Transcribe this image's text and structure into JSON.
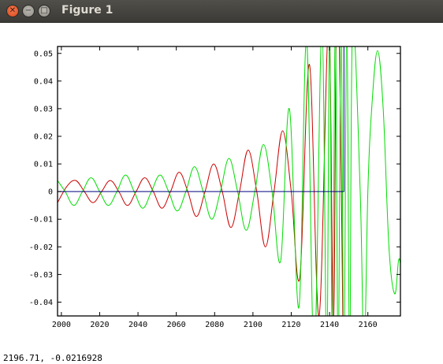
{
  "window": {
    "title": "Figure 1"
  },
  "titlebar_buttons": [
    {
      "name": "close",
      "icon": "close-icon",
      "glyph": "✕"
    },
    {
      "name": "minimize",
      "icon": "minimize-icon",
      "glyph": "−"
    },
    {
      "name": "maximize",
      "icon": "maximize-icon",
      "glyph": "□"
    }
  ],
  "status": {
    "coords": "2196.71, -0.0216928"
  },
  "chart_data": {
    "type": "line",
    "title": "",
    "xlabel": "",
    "ylabel": "",
    "xlim": [
      1998,
      2177
    ],
    "ylim": [
      -0.045,
      0.0525
    ],
    "x_ticks": [
      2000,
      2020,
      2040,
      2060,
      2080,
      2100,
      2120,
      2140,
      2160
    ],
    "x_tick_labels": [
      "2000",
      "2020",
      "2040",
      "2060",
      "2080",
      "2100",
      "2120",
      "2140",
      "2160"
    ],
    "y_ticks": [
      -0.04,
      -0.03,
      -0.02,
      -0.01,
      0,
      0.01,
      0.02,
      0.03,
      0.04,
      0.05
    ],
    "y_tick_labels": [
      "-0.04",
      "-0.03",
      "-0.02",
      "-0.01",
      "0",
      "0.01",
      "0.02",
      "0.03",
      "0.04",
      "0.05"
    ],
    "grid": false,
    "legend": "none",
    "series": [
      {
        "color": "#cc0000",
        "x": [
          1998,
          2003,
          2007.5,
          2012,
          2016.5,
          2021,
          2025.5,
          2030,
          2034.5,
          2039,
          2043.5,
          2048,
          2052.5,
          2057,
          2061.5,
          2066,
          2070.5,
          2075,
          2079.5,
          2084,
          2088.5,
          2093,
          2097.5,
          2102,
          2106.5,
          2111,
          2115.5,
          2120,
          2124.5,
          2129.5,
          2134.5,
          2139.5,
          2142,
          2143.5,
          2145,
          2147
        ],
        "y": [
          -0.004,
          0.002,
          0.004,
          0,
          -0.004,
          0,
          0.004,
          0,
          -0.005,
          0,
          0.005,
          0,
          -0.006,
          0,
          0.007,
          0,
          -0.009,
          0,
          0.01,
          0,
          -0.013,
          0,
          0.015,
          0,
          -0.02,
          0,
          0.022,
          0,
          -0.031,
          0.046,
          -0.045,
          0.06,
          -0.05,
          0.06,
          0.06,
          -0.05
        ]
      },
      {
        "color": "#00dd00",
        "x": [
          1998,
          2002,
          2006.5,
          2011,
          2015.5,
          2020,
          2024.5,
          2029,
          2033.5,
          2038,
          2042.5,
          2047,
          2051.5,
          2056,
          2060.5,
          2065,
          2069.5,
          2074,
          2078.5,
          2083,
          2087.5,
          2092,
          2096.5,
          2101,
          2105.5,
          2110,
          2114.5,
          2119,
          2124,
          2128,
          2132,
          2136,
          2138.5,
          2140,
          2141.5,
          2143,
          2144.5,
          2146,
          2147.5,
          2149,
          2150.5,
          2152,
          2156,
          2158,
          2160,
          2162,
          2165,
          2168,
          2171,
          2174,
          2176,
          2177
        ],
        "y": [
          0.004,
          0,
          -0.005,
          0,
          0.005,
          0,
          -0.005,
          0,
          0.006,
          0,
          -0.006,
          0,
          0.006,
          0,
          -0.007,
          0,
          0.009,
          0,
          -0.01,
          0,
          0.012,
          0,
          -0.014,
          0,
          0.017,
          0,
          -0.025,
          0.03,
          -0.042,
          0.055,
          -0.06,
          0.06,
          -0.06,
          0.06,
          -0.06,
          0.06,
          -0.06,
          0.06,
          -0.06,
          0.06,
          -0.06,
          0.06,
          0.0,
          -0.06,
          0.0,
          0.03,
          0.051,
          0.03,
          -0.02,
          -0.037,
          -0.025,
          -0.026
        ]
      },
      {
        "color": "#000080",
        "x": [
          1998,
          2147.5,
          2147.5
        ],
        "y": [
          0,
          0,
          0.06
        ]
      }
    ]
  }
}
